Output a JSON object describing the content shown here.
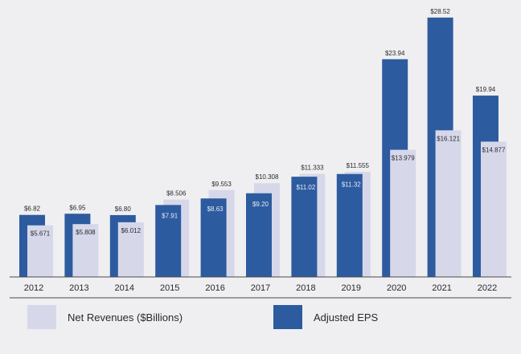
{
  "colors": {
    "background": "#efeff1",
    "revenue": "#d6d8ea",
    "eps": "#2d5b9f",
    "axis": "#4a4a4e",
    "text": "#2a2a2e",
    "inner_label_on_dark": "#e6ecf7"
  },
  "chart_data": {
    "type": "bar",
    "title": "",
    "xlabel": "",
    "ylabel": "",
    "categories": [
      "2012",
      "2013",
      "2014",
      "2015",
      "2016",
      "2017",
      "2018",
      "2019",
      "2020",
      "2021",
      "2022"
    ],
    "ylim": [
      0,
      30
    ],
    "grid": false,
    "legend_position": "bottom",
    "series": [
      {
        "name": "Net Revenues ($Billions)",
        "values": [
          5.671,
          5.808,
          6.012,
          8.506,
          9.553,
          10.308,
          11.333,
          11.555,
          13.979,
          16.121,
          14.877
        ],
        "labels": [
          "$5.671",
          "$5.808",
          "$6.012",
          "$8.506",
          "$9.553",
          "$10.308",
          "$11.333",
          "$11.555",
          "$13.979",
          "$16.121",
          "$14.877"
        ]
      },
      {
        "name": "Adjusted EPS",
        "values": [
          6.82,
          6.95,
          6.8,
          7.91,
          8.63,
          9.2,
          11.02,
          11.32,
          23.94,
          28.52,
          19.94
        ],
        "labels": [
          "$6.82",
          "$6.95",
          "$6.80",
          "$7.91",
          "$8.63",
          "$9.20",
          "$11.02",
          "$11.32",
          "$23.94",
          "$28.52",
          "$19.94"
        ]
      }
    ]
  },
  "legend": {
    "revenue_label": "Net Revenues ($Billions)",
    "eps_label": "Adjusted EPS"
  }
}
